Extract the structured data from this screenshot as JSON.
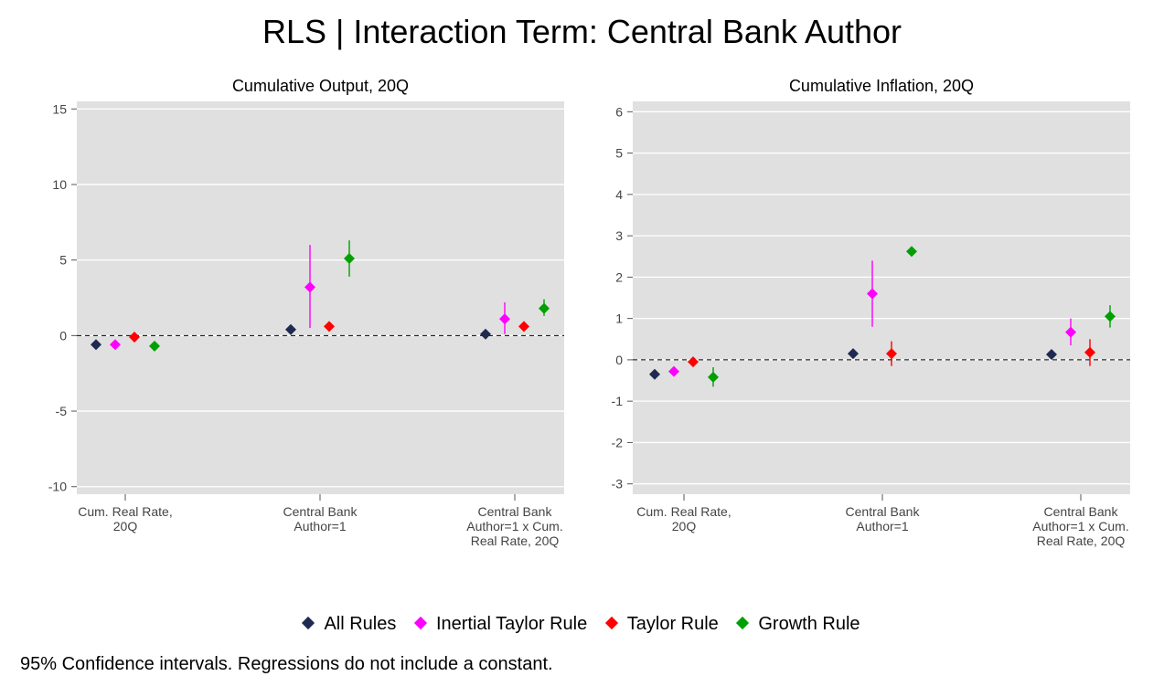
{
  "title": "RLS | Interaction Term: Central Bank Author",
  "note": "95% Confidence intervals. Regressions do not include a constant.",
  "legend": [
    {
      "label": "All Rules",
      "color": "#1f2a50"
    },
    {
      "label": "Inertial Taylor Rule",
      "color": "#ff00ff"
    },
    {
      "label": "Taylor Rule",
      "color": "#ff0000"
    },
    {
      "label": "Growth Rule",
      "color": "#00a000"
    }
  ],
  "chart_data": [
    {
      "type": "scatter",
      "title": "Cumulative Output, 20Q",
      "categories": [
        [
          "Cum. Real Rate,",
          "20Q"
        ],
        [
          "Central Bank",
          "Author=1"
        ],
        [
          "Central Bank",
          "Author=1 x Cum.",
          "Real Rate, 20Q"
        ]
      ],
      "ylim": [
        -10.5,
        15.5
      ],
      "yticks": [
        -10,
        -5,
        0,
        5,
        10,
        15
      ],
      "ytick_labels": [
        "-10",
        "-5",
        "0",
        "5",
        "10",
        "15"
      ],
      "reference_line": 0,
      "series": [
        {
          "name": "All Rules",
          "color": "#1f2a50",
          "values": [
            -0.6,
            0.4,
            0.1
          ],
          "lower": [
            null,
            null,
            null
          ],
          "upper": [
            null,
            null,
            null
          ]
        },
        {
          "name": "Inertial Taylor Rule",
          "color": "#ff00ff",
          "values": [
            -0.6,
            3.2,
            1.1
          ],
          "lower": [
            null,
            0.5,
            0.1
          ],
          "upper": [
            null,
            6.0,
            2.2
          ]
        },
        {
          "name": "Taylor Rule",
          "color": "#ff0000",
          "values": [
            -0.1,
            0.6,
            0.6
          ],
          "lower": [
            null,
            null,
            null
          ],
          "upper": [
            null,
            null,
            null
          ]
        },
        {
          "name": "Growth Rule",
          "color": "#00a000",
          "values": [
            -0.7,
            5.1,
            1.8
          ],
          "lower": [
            null,
            3.9,
            1.3
          ],
          "upper": [
            null,
            6.3,
            2.4
          ]
        }
      ]
    },
    {
      "type": "scatter",
      "title": "Cumulative Inflation, 20Q",
      "categories": [
        [
          "Cum. Real Rate,",
          "20Q"
        ],
        [
          "Central Bank",
          "Author=1"
        ],
        [
          "Central Bank",
          "Author=1 x Cum.",
          "Real Rate, 20Q"
        ]
      ],
      "ylim": [
        -3.25,
        6.25
      ],
      "yticks": [
        -3,
        -2,
        -1,
        0,
        1,
        2,
        3,
        4,
        5,
        6
      ],
      "ytick_labels": [
        "-3",
        "-2",
        "-1",
        "0",
        "1",
        "2",
        "3",
        "4",
        "5",
        "6"
      ],
      "reference_line": 0,
      "series": [
        {
          "name": "All Rules",
          "color": "#1f2a50",
          "values": [
            -0.35,
            0.15,
            0.13
          ],
          "lower": [
            null,
            0.05,
            null
          ],
          "upper": [
            null,
            0.25,
            null
          ]
        },
        {
          "name": "Inertial Taylor Rule",
          "color": "#ff00ff",
          "values": [
            -0.28,
            1.6,
            0.67
          ],
          "lower": [
            -0.35,
            0.8,
            0.35
          ],
          "upper": [
            -0.2,
            2.4,
            1.0
          ]
        },
        {
          "name": "Taylor Rule",
          "color": "#ff0000",
          "values": [
            -0.05,
            0.15,
            0.18
          ],
          "lower": [
            null,
            -0.15,
            -0.15
          ],
          "upper": [
            null,
            0.45,
            0.5
          ]
        },
        {
          "name": "Growth Rule",
          "color": "#00a000",
          "values": [
            -0.42,
            2.62,
            1.05
          ],
          "lower": [
            -0.65,
            null,
            0.78
          ],
          "upper": [
            -0.18,
            null,
            1.32
          ]
        }
      ]
    }
  ]
}
